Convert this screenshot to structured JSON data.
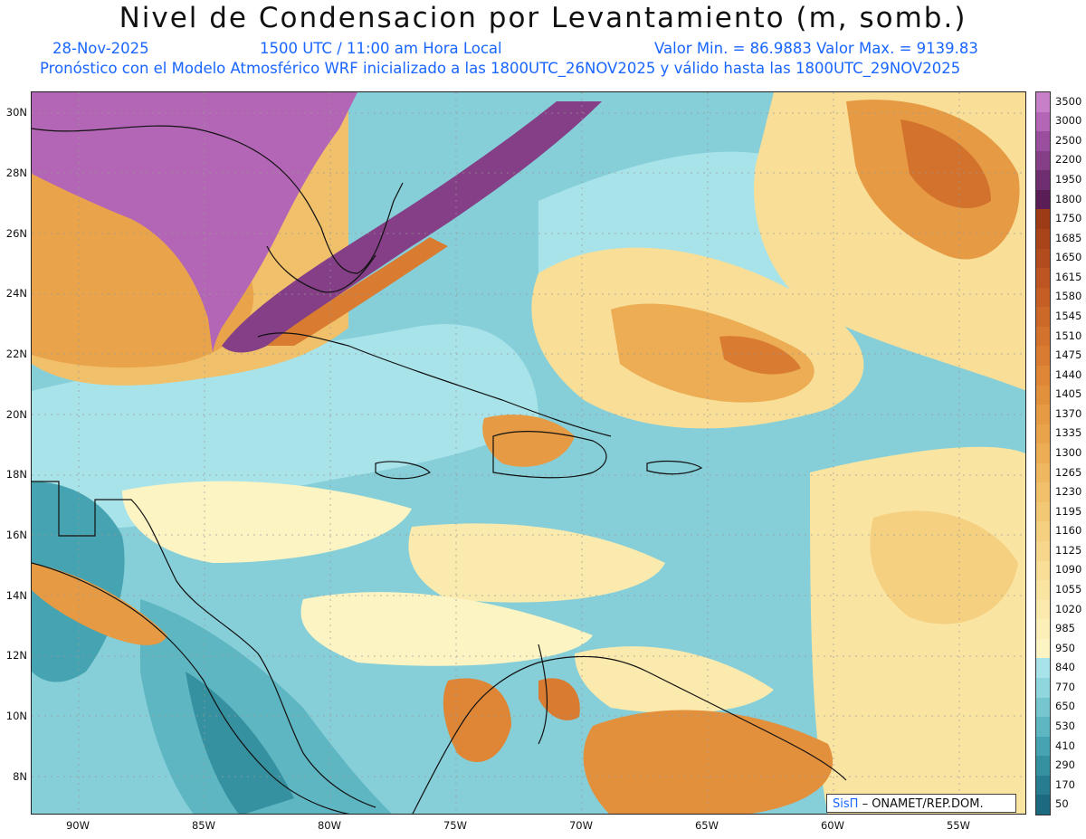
{
  "title": "Nivel de Condensacion por Levantamiento (m, somb.)",
  "subtitle": {
    "date": "28-Nov-2025",
    "time": "1500 UTC / 11:00 am Hora Local",
    "minmax": "Valor Min. = 86.9883  Valor Max. = 9139.83",
    "model_line": "Pronóstico con el Modelo Atmosférico WRF inicializado a las 1800UTC_26NOV2025 y válido hasta las  1800UTC_29NOV2025"
  },
  "lat_labels": [
    "30N",
    "28N",
    "26N",
    "24N",
    "22N",
    "20N",
    "18N",
    "16N",
    "14N",
    "12N",
    "10N",
    "8N"
  ],
  "lon_labels": [
    "90W",
    "85W",
    "80W",
    "75W",
    "70W",
    "65W",
    "60W",
    "55W"
  ],
  "colorbar": {
    "labels": [
      "3500",
      "3000",
      "2500",
      "2200",
      "1950",
      "1800",
      "1750",
      "1685",
      "1650",
      "1615",
      "1580",
      "1545",
      "1510",
      "1475",
      "1440",
      "1405",
      "1370",
      "1335",
      "1300",
      "1265",
      "1230",
      "1195",
      "1160",
      "1125",
      "1090",
      "1055",
      "1020",
      "985",
      "950",
      "840",
      "770",
      "650",
      "530",
      "410",
      "290",
      "170",
      "50"
    ],
    "colors": [
      "#c77fc8",
      "#b366b5",
      "#9a4f9e",
      "#843f86",
      "#6f2e70",
      "#5a1d55",
      "#9c3b16",
      "#a9431a",
      "#b24c1e",
      "#bc5521",
      "#c45e24",
      "#cc6828",
      "#d3722c",
      "#d97c31",
      "#de8636",
      "#e2903c",
      "#e69a43",
      "#e9a44b",
      "#ecad54",
      "#efb75f",
      "#f1c06a",
      "#f3c875",
      "#f5d080",
      "#f6d78b",
      "#f8de97",
      "#f9e4a2",
      "#fbeaad",
      "#fcefb8",
      "#fdf4c3",
      "#a8e3ea",
      "#8fd6df",
      "#76c6d0",
      "#5db6c2",
      "#46a3b1",
      "#3590a0",
      "#277d8f",
      "#1b6a7f"
    ]
  },
  "credit": {
    "brand": "SisΠ",
    "text": "– ONAMET/REP.DOM."
  },
  "map_colors": {
    "ocean": "#86cfd9",
    "warm": "#f5d080",
    "orange": "#e69a43",
    "purple": "#b366b5",
    "deep": "#3590a0",
    "light": "#fdf4c3"
  }
}
